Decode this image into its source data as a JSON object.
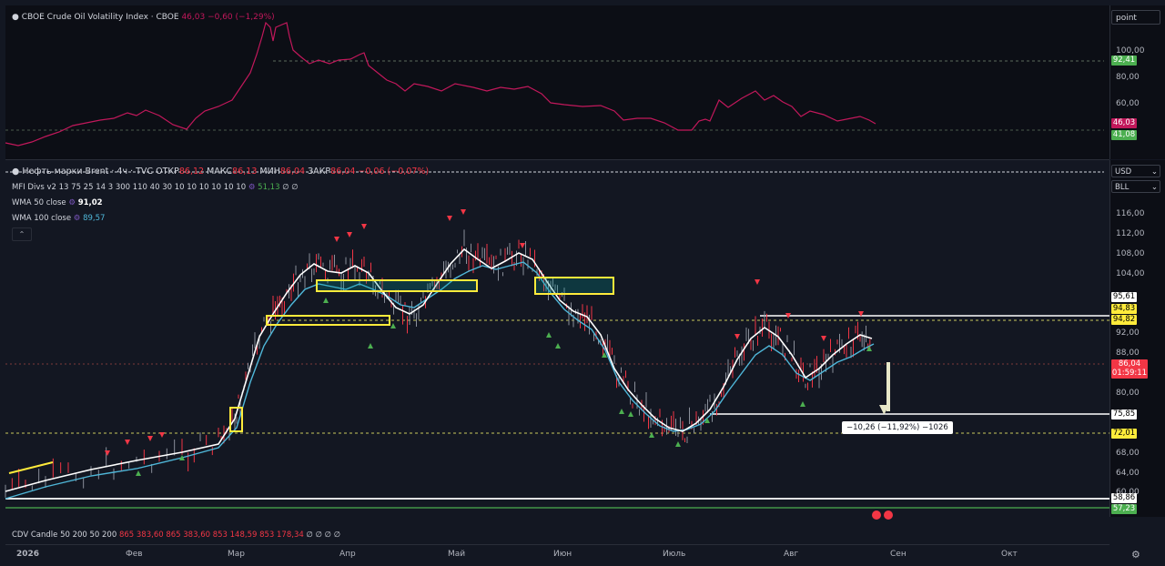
{
  "top_pane": {
    "legend_name": "CBOE Crude Oil Volatility Index · CBOE",
    "legend_value": "46,03 −0,60 (−1,29%)",
    "scale_mode": "point",
    "ticks": [
      "100,00",
      "80,00",
      "60,00"
    ],
    "badges": {
      "dashed_level": "92,41",
      "last": "46,03",
      "low": "41,08"
    }
  },
  "main_pane": {
    "symbol": "Нефть марки Brent · 4ч · TVC",
    "ohlc": {
      "open_label": "ОТКР",
      "open": "86,12",
      "high_label": "МАКС",
      "high": "86,13",
      "low_label": "МИН",
      "low": "86,04",
      "close_label": "ЗАКР",
      "close": "86,04",
      "change": "−0,06 (−0,07%)"
    },
    "currency": "USD",
    "unit": "BLL",
    "indicators": {
      "mfi_label": "MFI Divs v2 13 75 25 14 3 300 110 40 30 10 10 10 10 10 10",
      "mfi_value": "51,13",
      "mfi_empty": "∅ ∅",
      "wma50_label": "WMA 50 close",
      "wma50_value": "91,02",
      "wma100_label": "WMA 100 close",
      "wma100_value": "89,57"
    },
    "ticks": [
      "116,00",
      "112,00",
      "108,00",
      "104,00",
      "92,00",
      "88,00",
      "80,00",
      "68,00",
      "64,00",
      "60,00"
    ],
    "badges": {
      "level_95": "95,61",
      "level_9483": "94,83",
      "level_9482": "94,82",
      "last_price": "86,04",
      "countdown": "01:59:11",
      "level_7585": "75,85",
      "level_7201": "72,01",
      "level_5886": "58,86",
      "level_5723": "57,23"
    },
    "measure_label": "−10,26 (−11,92%) −1026"
  },
  "cdv": {
    "label": "CDV Candle 50 200 50 200",
    "values": [
      "865 383,60",
      "865 383,60",
      "853 148,59",
      "853 178,34"
    ],
    "empty": "∅ ∅ ∅ ∅"
  },
  "time_axis": {
    "labels": [
      "2026",
      "Фев",
      "Мар",
      "Апр",
      "Май",
      "Июн",
      "Июль",
      "Авг",
      "Сен",
      "Окт"
    ]
  },
  "colors": {
    "background": "#0c0e15",
    "vix_line": "#c2185b",
    "wma50": "#ffffff",
    "wma100": "#4fb7d9",
    "highlight_box": "#ffeb3b",
    "up_marker": "#4caf50",
    "down_marker": "#f23645",
    "last_price_badge": "#f23645",
    "level_badge": "#ffffff"
  },
  "icons": [
    "droplet-icon",
    "settings-gear-icon",
    "chevron-down-icon",
    "arrow-down-icon"
  ]
}
